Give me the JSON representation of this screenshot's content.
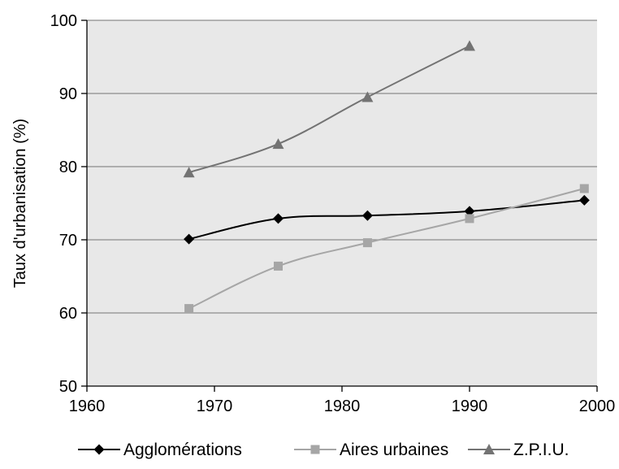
{
  "chart_data": {
    "type": "line",
    "title": "",
    "xlabel": "",
    "ylabel": "Taux d'urbanisation (%)",
    "xlim": [
      1960,
      2000
    ],
    "ylim": [
      50,
      100
    ],
    "xticks": [
      1960,
      1970,
      1980,
      1990,
      2000
    ],
    "yticks": [
      50,
      60,
      70,
      80,
      90,
      100
    ],
    "grid": "horizontal",
    "legend_position": "bottom",
    "plot_background": "#e8e8e8",
    "series": [
      {
        "name": "Agglomérations",
        "marker": "diamond",
        "color": "#000000",
        "x": [
          1968,
          1975,
          1982,
          1990,
          1999
        ],
        "y": [
          70.1,
          72.9,
          73.3,
          73.9,
          75.4
        ]
      },
      {
        "name": "Aires urbaines",
        "marker": "square",
        "color": "#a6a6a6",
        "x": [
          1968,
          1975,
          1982,
          1990,
          1999
        ],
        "y": [
          60.6,
          66.4,
          69.6,
          72.9,
          77.0
        ]
      },
      {
        "name": "Z.P.I.U.",
        "marker": "triangle",
        "color": "#737373",
        "x": [
          1968,
          1975,
          1982,
          1990
        ],
        "y": [
          79.2,
          83.1,
          89.5,
          96.5
        ]
      }
    ]
  }
}
